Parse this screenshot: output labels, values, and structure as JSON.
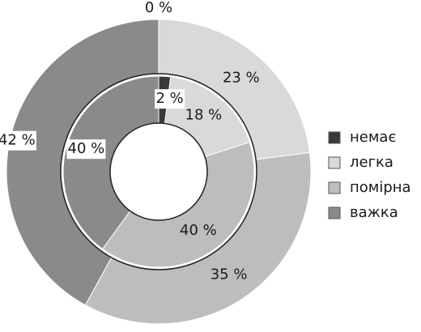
{
  "chart_data": {
    "type": "pie",
    "subtype": "nested-donut",
    "categories": [
      "немає",
      "легка",
      "помірна",
      "важка"
    ],
    "colors": [
      "#3a3a3a",
      "#d9d9d9",
      "#bdbdbd",
      "#8a8a8a"
    ],
    "series": [
      {
        "ring": "outer",
        "values": [
          0,
          23,
          35,
          42
        ],
        "labels": [
          "0 %",
          "23 %",
          "35 %",
          "42 %"
        ]
      },
      {
        "ring": "inner",
        "values": [
          2,
          18,
          40,
          40
        ],
        "labels": [
          "2 %",
          "18 %",
          "40 %",
          "40 %"
        ]
      }
    ],
    "legend_position": "right"
  }
}
